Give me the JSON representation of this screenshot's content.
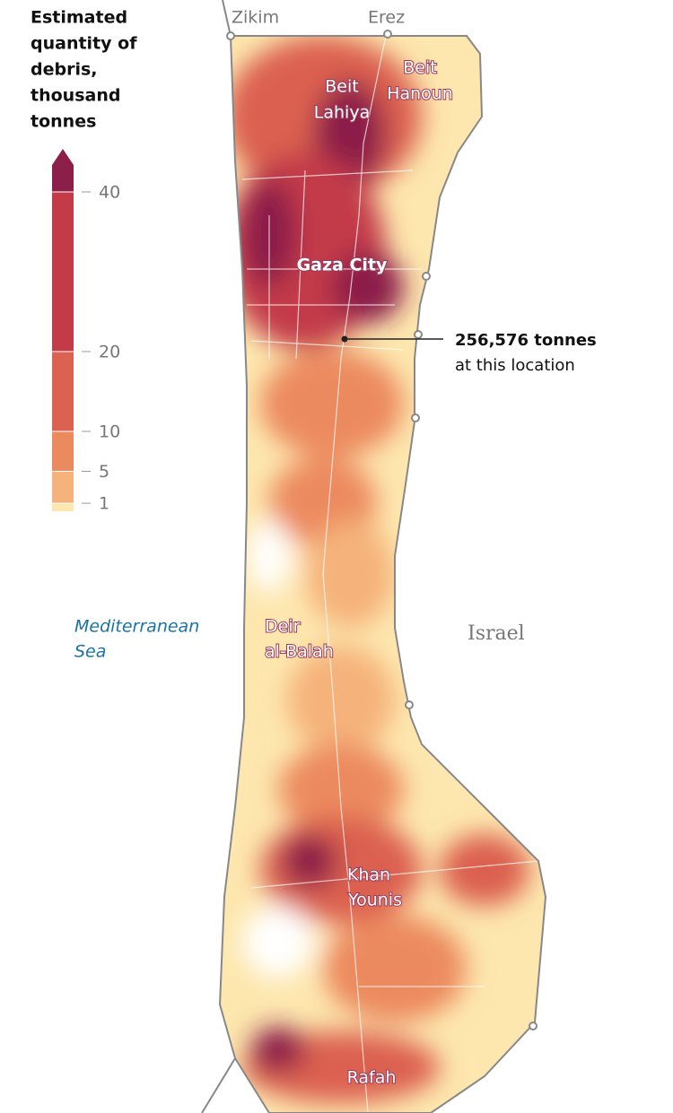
{
  "legend": {
    "title": [
      "Estimated",
      "quantity of",
      "debris,",
      "thousand",
      "tonnes"
    ],
    "ticks": [
      1,
      5,
      10,
      20,
      40
    ],
    "lim": [
      0,
      40
    ],
    "colors": [
      "#fde7ae",
      "#f5b27a",
      "#ec8a5f",
      "#db6150",
      "#c33b48",
      "#8c1f4a"
    ]
  },
  "places": {
    "zikim": "Zikim",
    "erez": "Erez",
    "beit_lahiya": [
      "Beit",
      "Lahiya"
    ],
    "beit_hanoun": [
      "Beit",
      "Hanoun"
    ],
    "gaza_city": "Gaza City",
    "deir_al_balah": [
      "Deir",
      "al-Balah"
    ],
    "khan_younis": [
      "Khan",
      "Younis"
    ],
    "rafah": "Rafah",
    "sea": [
      "Mediterranean",
      "Sea"
    ],
    "israel": "Israel"
  },
  "annotation": {
    "value": "256,576 tonnes",
    "text": "at this location"
  }
}
